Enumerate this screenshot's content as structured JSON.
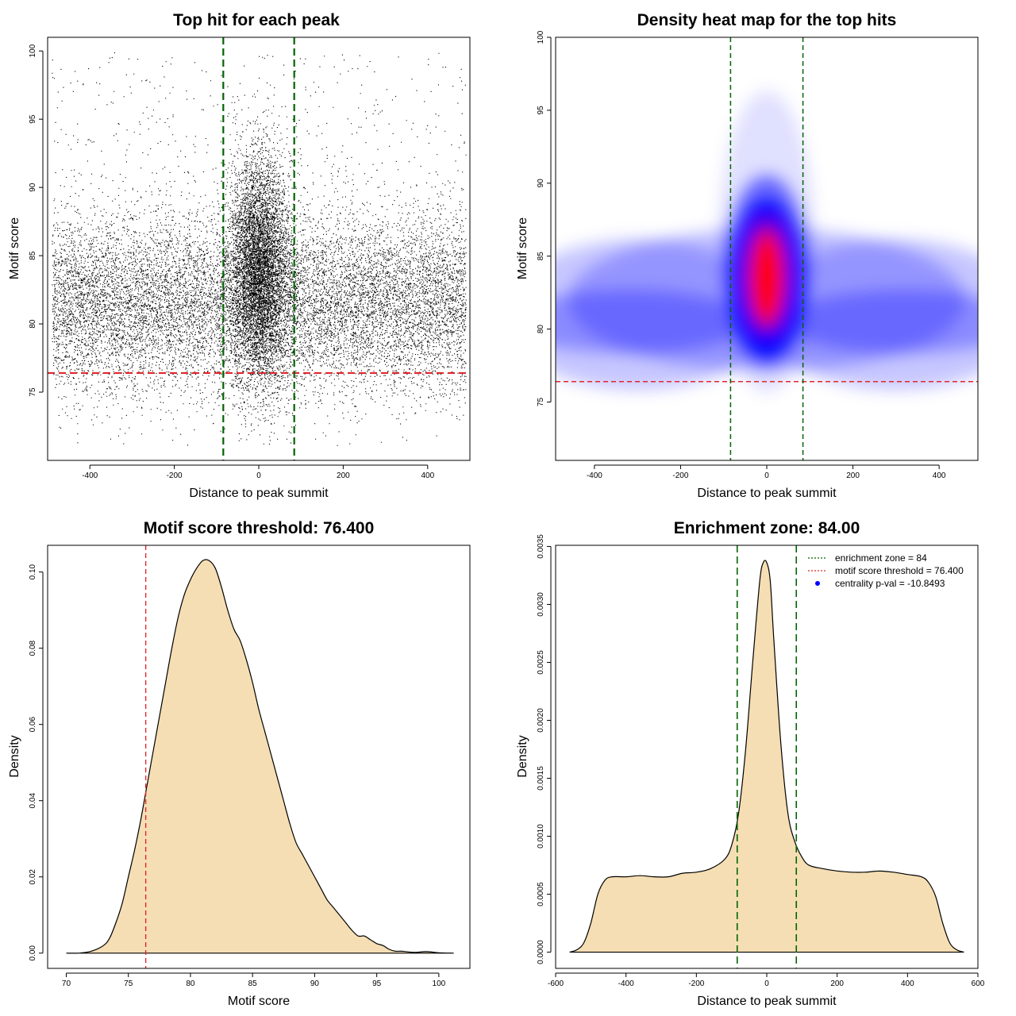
{
  "colors": {
    "scatter_point": "#000000",
    "threshold_line": "#e0282e",
    "zone_line": "#006400",
    "density_fill": "#f5deb3",
    "density_outline": "#000000",
    "heat_low": "#ffffff",
    "heat_mid": "#0000ff",
    "heat_high": "#ff0000",
    "frame": "#000000"
  },
  "chart_data": [
    {
      "type": "scatter",
      "title": "Top hit for each peak",
      "xlabel": "Distance to peak summit",
      "ylabel": "Motif score",
      "xlim": [
        -500,
        500
      ],
      "ylim": [
        70,
        101
      ],
      "xticks": [
        -400,
        -200,
        0,
        200,
        400
      ],
      "yticks": [
        75,
        80,
        85,
        90,
        95,
        100
      ],
      "grid": false,
      "approx_point_count": 20000,
      "distribution": {
        "background": {
          "x_range": [
            -490,
            490
          ],
          "y_center": 81.5,
          "y_sd": 3.3
        },
        "central": {
          "x_center": 0,
          "x_sd": 35,
          "y_center": 84,
          "y_sd": 4.2
        }
      },
      "hlines": [
        {
          "y": 76.4,
          "color": "#e0282e",
          "style": "dashed"
        }
      ],
      "vlines": [
        {
          "x": -84,
          "color": "#006400",
          "style": "dashed"
        },
        {
          "x": 84,
          "color": "#006400",
          "style": "dashed"
        }
      ]
    },
    {
      "type": "heatmap",
      "title": "Density heat map for the top hits",
      "xlabel": "Distance to peak summit",
      "ylabel": "Motif score",
      "xlim": [
        -490,
        490
      ],
      "ylim": [
        71,
        100
      ],
      "xticks": [
        -400,
        -200,
        0,
        200,
        400
      ],
      "yticks": [
        75,
        80,
        85,
        90,
        95,
        100
      ],
      "grid": false,
      "color_scale": [
        "#ffffff",
        "#0000ff",
        "#ff0000"
      ],
      "density_peak": {
        "x": 0,
        "y": 83.5
      },
      "hlines": [
        {
          "y": 76.4,
          "color": "#e0282e",
          "style": "dashed"
        }
      ],
      "vlines": [
        {
          "x": -84,
          "color": "#006400",
          "style": "dashed"
        },
        {
          "x": 84,
          "color": "#006400",
          "style": "dashed"
        }
      ]
    },
    {
      "type": "area",
      "title": "Motif score threshold: 76.400",
      "xlabel": "Motif score",
      "ylabel": "Density",
      "xlim": [
        68.5,
        102.5
      ],
      "ylim": [
        -0.004,
        0.107
      ],
      "xticks": [
        70,
        75,
        80,
        85,
        90,
        95,
        100
      ],
      "yticks": [
        0.0,
        0.02,
        0.04,
        0.06,
        0.08,
        0.1
      ],
      "ytick_labels": [
        "0.00",
        "0.02",
        "0.04",
        "0.06",
        "0.08",
        "0.10"
      ],
      "grid": false,
      "x": [
        70,
        71,
        72,
        73,
        73.5,
        74,
        74.5,
        75,
        75.5,
        76,
        76.5,
        77,
        77.5,
        78,
        78.5,
        79,
        79.5,
        80,
        80.5,
        81,
        81.5,
        82,
        82.5,
        83,
        83.5,
        84,
        84.5,
        85,
        85.5,
        86,
        86.5,
        87,
        87.5,
        88,
        88.5,
        89,
        89.5,
        90,
        90.5,
        91,
        91.5,
        92,
        92.5,
        93,
        93.5,
        94,
        94.5,
        95,
        95.5,
        96,
        96.5,
        97,
        98,
        99,
        100,
        101.2
      ],
      "y": [
        0.0,
        0.0,
        0.0005,
        0.002,
        0.004,
        0.008,
        0.013,
        0.02,
        0.027,
        0.035,
        0.044,
        0.053,
        0.062,
        0.071,
        0.08,
        0.088,
        0.094,
        0.098,
        0.101,
        0.103,
        0.103,
        0.101,
        0.096,
        0.09,
        0.085,
        0.082,
        0.077,
        0.071,
        0.064,
        0.058,
        0.052,
        0.046,
        0.04,
        0.034,
        0.029,
        0.026,
        0.023,
        0.02,
        0.017,
        0.014,
        0.012,
        0.01,
        0.008,
        0.006,
        0.0045,
        0.0045,
        0.0035,
        0.0025,
        0.002,
        0.001,
        0.0005,
        0.0005,
        0.0002,
        0.0004,
        0.0001,
        0.0
      ],
      "vlines": [
        {
          "x": 76.4,
          "color": "#e0282e",
          "style": "dashed"
        }
      ]
    },
    {
      "type": "area",
      "title": "Enrichment zone: 84.00",
      "xlabel": "Distance to peak summit",
      "ylabel": "Density",
      "xlim": [
        -600,
        600
      ],
      "ylim": [
        -0.00014,
        0.00351
      ],
      "xticks": [
        -600,
        -400,
        -200,
        0,
        200,
        400,
        600
      ],
      "yticks": [
        0.0,
        0.0005,
        0.001,
        0.0015,
        0.002,
        0.0025,
        0.003,
        0.0035
      ],
      "ytick_labels": [
        "0.0000",
        "0.0005",
        "0.0010",
        "0.0015",
        "0.0020",
        "0.0025",
        "0.0030",
        "0.0035"
      ],
      "grid": false,
      "x": [
        -560,
        -540,
        -520,
        -500,
        -480,
        -460,
        -440,
        -400,
        -360,
        -320,
        -280,
        -240,
        -200,
        -160,
        -120,
        -100,
        -80,
        -60,
        -40,
        -20,
        -10,
        0,
        10,
        20,
        40,
        60,
        80,
        100,
        120,
        160,
        200,
        240,
        280,
        320,
        360,
        400,
        440,
        460,
        480,
        500,
        520,
        540,
        560
      ],
      "y": [
        0.0,
        2e-05,
        8e-05,
        0.00025,
        0.0005,
        0.00062,
        0.00065,
        0.00065,
        0.00066,
        0.00065,
        0.00065,
        0.00068,
        0.00069,
        0.00072,
        0.0008,
        0.00092,
        0.0012,
        0.00175,
        0.0025,
        0.0032,
        0.00336,
        0.00336,
        0.0032,
        0.0027,
        0.0018,
        0.0012,
        0.00095,
        0.00082,
        0.00075,
        0.00072,
        0.0007,
        0.00069,
        0.00069,
        0.0007,
        0.00069,
        0.00067,
        0.00065,
        0.0006,
        0.00048,
        0.00025,
        8e-05,
        2e-05,
        0.0
      ],
      "vlines": [
        {
          "x": -84,
          "color": "#006400",
          "style": "dashed"
        },
        {
          "x": 84,
          "color": "#006400",
          "style": "dashed"
        }
      ],
      "legend": {
        "position": "top-right",
        "entries": [
          {
            "label": "enrichment zone = 84",
            "color": "#006400",
            "symbol": "dotted-line"
          },
          {
            "label": "motif score threshold = 76.400",
            "color": "#e0282e",
            "symbol": "dotted-line"
          },
          {
            "label": "centrality p-val = -10.8493",
            "color": "#0000ff",
            "symbol": "dot"
          }
        ]
      }
    }
  ]
}
